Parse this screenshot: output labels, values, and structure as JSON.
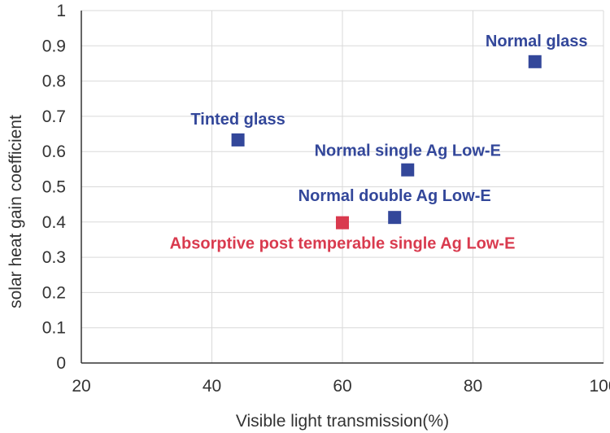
{
  "chart_data": {
    "type": "scatter",
    "title": "",
    "xlabel": "Visible light transmission(%)",
    "ylabel": "solar heat gain coefficient",
    "xlim": [
      20,
      100
    ],
    "ylim": [
      0,
      1
    ],
    "xticks": [
      "20",
      "40",
      "60",
      "80",
      "100"
    ],
    "yticks": [
      "0",
      "0.1",
      "0.2",
      "0.3",
      "0.4",
      "0.5",
      "0.6",
      "0.7",
      "0.8",
      "0.9",
      "1"
    ],
    "grid": true,
    "points": [
      {
        "label": "Normal glass",
        "x": 89.5,
        "y": 0.855,
        "color": "#33479a"
      },
      {
        "label": "Tinted glass",
        "x": 44,
        "y": 0.633,
        "color": "#33479a"
      },
      {
        "label": "Normal single Ag Low-E",
        "x": 70,
        "y": 0.548,
        "color": "#33479a"
      },
      {
        "label": "Normal double Ag Low-E",
        "x": 68,
        "y": 0.413,
        "color": "#33479a"
      },
      {
        "label": "Absorptive post temperable single Ag Low-E",
        "x": 60,
        "y": 0.398,
        "color": "#d93a4e"
      }
    ]
  }
}
